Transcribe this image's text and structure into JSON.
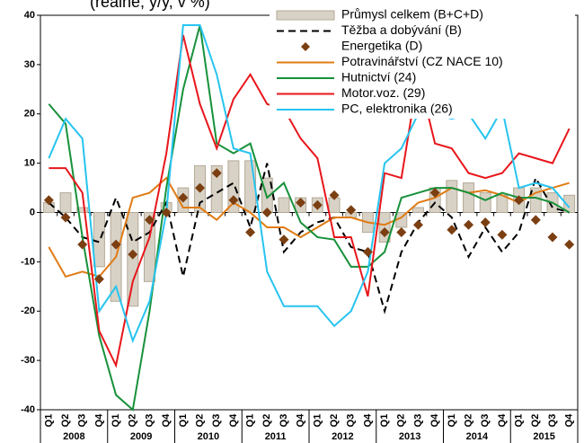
{
  "chart_data": {
    "type": "combo",
    "title": "(reálně, y/y, v %)",
    "categories": [
      "Q1",
      "Q2",
      "Q3",
      "Q4",
      "Q1",
      "Q2",
      "Q3",
      "Q4",
      "Q1",
      "Q2",
      "Q3",
      "Q4",
      "Q1",
      "Q2",
      "Q3",
      "Q4",
      "Q1",
      "Q2",
      "Q3",
      "Q4",
      "Q1",
      "Q2",
      "Q3",
      "Q4",
      "Q1",
      "Q2",
      "Q3",
      "Q4",
      "Q1",
      "Q2",
      "Q3",
      "Q4"
    ],
    "years": [
      "2008",
      "2009",
      "2010",
      "2011",
      "2012",
      "2013",
      "2014",
      "2015"
    ],
    "ylim": [
      -40,
      40
    ],
    "yticks": [
      -40,
      -30,
      -20,
      -10,
      0,
      10,
      20,
      30,
      40
    ],
    "series": [
      {
        "name": "Průmysl celkem (B+C+D)",
        "type": "bar",
        "color": "#d8d2c6",
        "values": [
          2,
          4,
          1,
          -11,
          -18,
          -19,
          -14,
          2,
          5,
          9.5,
          9.5,
          10.5,
          10.5,
          7,
          3,
          3,
          3,
          3,
          -1,
          -4,
          -6,
          -3,
          1,
          5,
          6.5,
          6,
          4,
          3.5,
          5,
          5,
          4,
          3.5
        ]
      },
      {
        "name": "Těžba  a dobývání (B)",
        "type": "dashed",
        "color": "#000000",
        "values": [
          2,
          -1,
          -5,
          -6,
          3,
          -6,
          -4,
          2,
          -13,
          2,
          4,
          6,
          -3,
          10,
          -8,
          -4,
          -2,
          -1,
          -7,
          -8,
          -20,
          -8,
          -2,
          2,
          -1,
          -9,
          -3,
          -8,
          -4,
          7,
          1,
          0
        ]
      },
      {
        "name": "Energetika (D)",
        "type": "marker",
        "color": "#7b3f12",
        "values": [
          2.5,
          -1,
          -6.5,
          -13.5,
          -6.5,
          -8.5,
          -1.5,
          0,
          3,
          5,
          8,
          2.5,
          -4,
          0,
          -5.5,
          2,
          1.5,
          3.5,
          0.5,
          -8,
          -4,
          -4,
          -2.5,
          4,
          -3.5,
          -2.5,
          -2,
          -4.5,
          2.5,
          -1.5,
          -5,
          -6.5
        ]
      },
      {
        "name": "Potravinářství (CZ NACE 10)",
        "type": "line",
        "color": "#e07b14",
        "values": [
          -7,
          -13,
          -12,
          -13,
          -9,
          3,
          4,
          7,
          1,
          1,
          -1.5,
          2,
          0,
          -3,
          -3,
          -5,
          -3,
          -1,
          -1,
          -2,
          -2.5,
          -1,
          2,
          3,
          5,
          4,
          4.5,
          3.5,
          2,
          4,
          5,
          6
        ]
      },
      {
        "name": "Hutnictví (24)",
        "type": "line",
        "color": "#17913a",
        "values": [
          22,
          18,
          -5,
          -25,
          -37,
          -40,
          -20,
          5,
          25,
          38,
          14,
          12,
          14,
          3,
          6,
          -2,
          -5,
          -5.5,
          -11,
          -11,
          -8,
          3,
          4,
          5,
          5,
          4,
          2.5,
          4,
          3,
          3,
          2,
          0
        ]
      },
      {
        "name": "Motor.voz. (29)",
        "type": "line",
        "color": "#e8161b",
        "values": [
          9,
          9,
          4,
          -24,
          -31,
          -14,
          -5,
          12,
          36,
          22,
          13,
          23,
          28,
          22,
          21,
          15,
          11,
          -5,
          -5,
          -17,
          8,
          7,
          28,
          14,
          13,
          8,
          7,
          8,
          12,
          11,
          10,
          17
        ]
      },
      {
        "name": "PC, elektronika (26)",
        "type": "line",
        "color": "#27c4ef",
        "values": [
          11,
          19,
          15,
          -20,
          -15,
          -26,
          -18,
          0,
          38,
          38,
          28,
          13,
          12,
          -12,
          -19,
          -19,
          -19,
          -23,
          -20,
          -12,
          10,
          13,
          20,
          20,
          19,
          20,
          15,
          21,
          5,
          6,
          5,
          1
        ]
      }
    ]
  }
}
